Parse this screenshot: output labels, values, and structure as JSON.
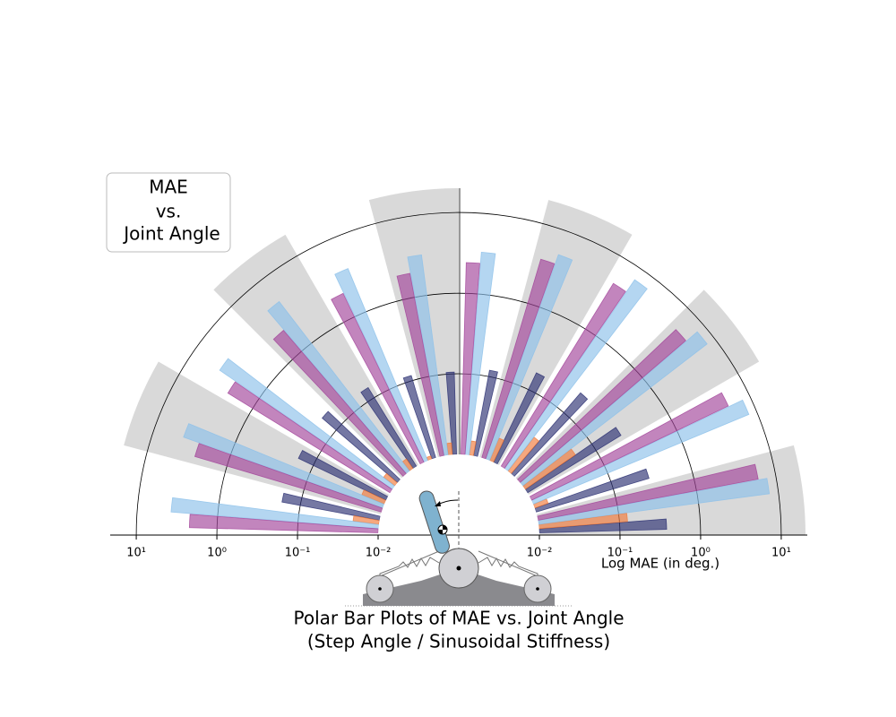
{
  "chart_data": {
    "type": "polar-bar",
    "title": [
      "Polar Bar Plots of MAE vs. Joint Angle",
      "(Step Angle / Sinusoidal Stiffness)"
    ],
    "annotation": [
      "MAE",
      "vs.",
      "Joint Angle"
    ],
    "r_label": "Log MAE (in deg.)",
    "rscale": "log",
    "rlim": [
      0.01,
      20
    ],
    "rticks": [
      {
        "value": 0.01,
        "label": "10⁻²"
      },
      {
        "value": 0.1,
        "label": "10⁻¹"
      },
      {
        "value": 1,
        "label": "10⁰"
      },
      {
        "value": 10,
        "label": "10¹"
      }
    ],
    "grid": true,
    "categories": [
      null,
      null,
      null,
      null,
      null,
      null,
      null,
      null,
      null,
      null,
      null,
      null
    ],
    "series": [
      {
        "color": "#2b2f72",
        "values": [
          0.38,
          0.29,
          0.23,
          0.21,
          0.17,
          0.12,
          0.105,
          0.116,
          0.14,
          0.17,
          0.16,
          0.17
        ]
      },
      {
        "color": "#f07a3a",
        "values": [
          0.126,
          0.015,
          0.057,
          0.034,
          0.02,
          0.015,
          0.014,
          0.011,
          0.014,
          0.015,
          0.02,
          0.021
        ]
      },
      {
        "color": "#8cc0ea",
        "values": [
          7.7,
          7.9,
          7.7,
          7.0,
          4.9,
          3.3,
          3.2,
          3.8,
          4.5,
          4.0,
          4.2,
          3.8
        ]
      },
      {
        "color": "#a2449a",
        "values": [
          6.0,
          5.1,
          5.1,
          4.6,
          3.7,
          2.4,
          2.0,
          2.1,
          2.2,
          2.3,
          2.6,
          2.2
        ]
      }
    ]
  }
}
